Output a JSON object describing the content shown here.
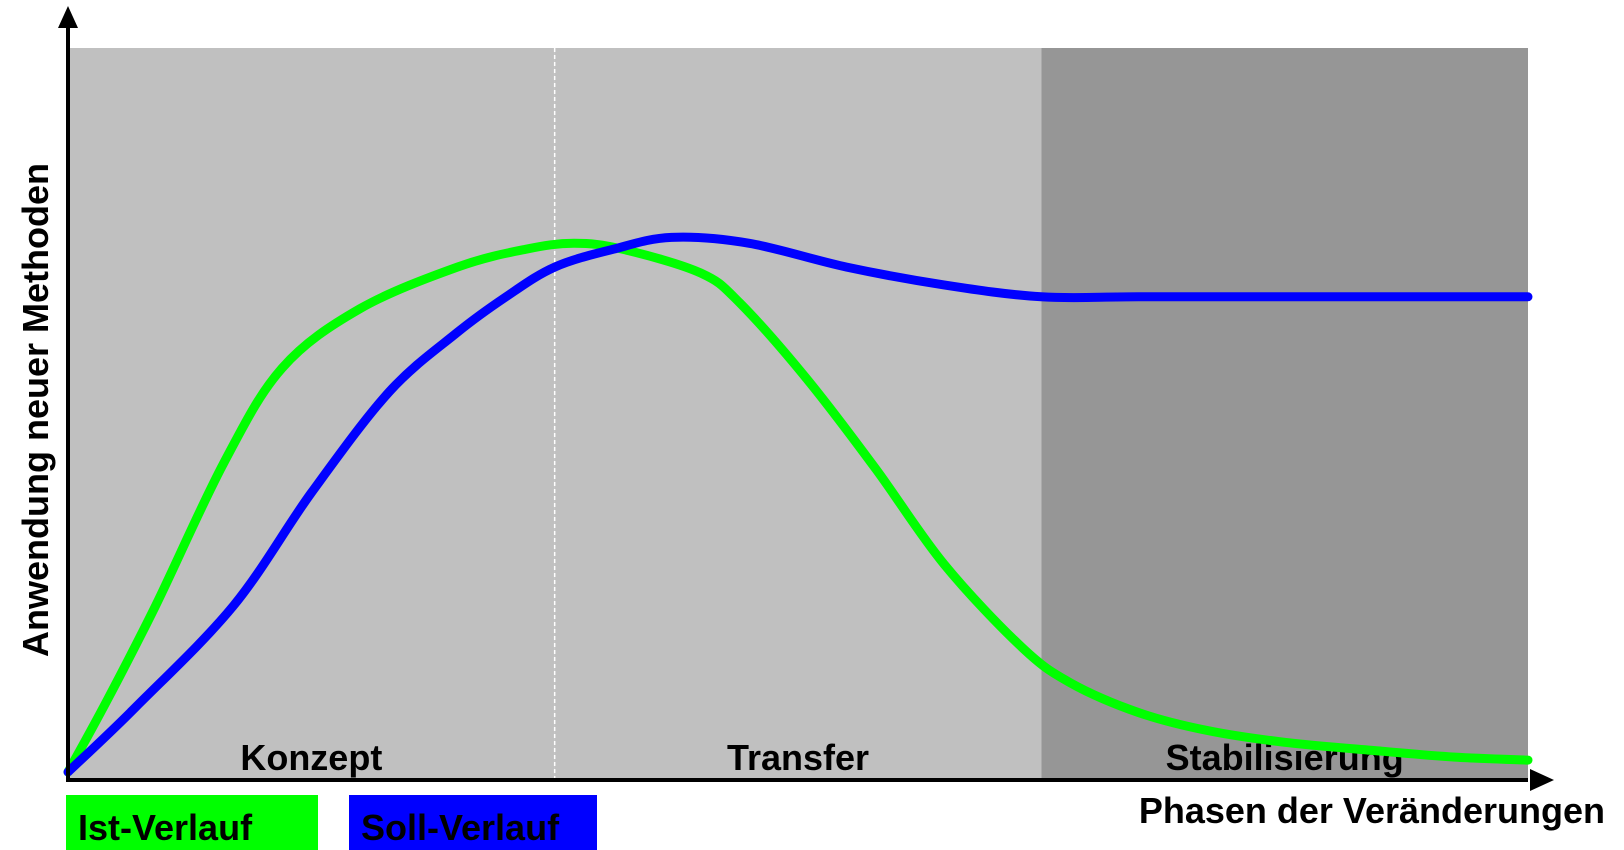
{
  "chart_data": {
    "type": "line",
    "xlabel": "Phasen der Veränderungen",
    "ylabel": "Anwendung neuer Methoden",
    "phases": [
      {
        "label": "Konzept",
        "color": "#c0c0c0"
      },
      {
        "label": "Transfer",
        "color": "#c0c0c0"
      },
      {
        "label": "Stabilisierung",
        "color": "#969696"
      }
    ],
    "xlim": [
      0,
      3
    ],
    "ylim": [
      0,
      1
    ],
    "grid": false,
    "legend_position": "bottom-left",
    "series": [
      {
        "name": "Ist-Verlauf",
        "color": "#00ff00",
        "x": [
          0,
          0.08,
          0.18,
          0.32,
          0.44,
          0.6,
          0.8,
          0.94,
          1.04,
          1.14,
          1.3,
          1.38,
          1.52,
          1.66,
          1.8,
          1.96,
          2.06,
          2.2,
          2.34,
          2.5,
          2.7,
          2.85,
          3.0
        ],
        "y": [
          0.0,
          0.12,
          0.28,
          0.52,
          0.68,
          0.78,
          0.85,
          0.88,
          0.89,
          0.88,
          0.84,
          0.79,
          0.66,
          0.51,
          0.35,
          0.21,
          0.15,
          0.1,
          0.07,
          0.05,
          0.035,
          0.025,
          0.02
        ]
      },
      {
        "name": "Soll-Verlauf",
        "color": "#0000ff",
        "x": [
          0,
          0.14,
          0.34,
          0.5,
          0.66,
          0.8,
          0.9,
          1.0,
          1.12,
          1.24,
          1.4,
          1.6,
          1.8,
          2.0,
          2.2,
          2.5,
          2.8,
          3.0
        ],
        "y": [
          0.0,
          0.11,
          0.28,
          0.47,
          0.64,
          0.74,
          0.8,
          0.85,
          0.88,
          0.9,
          0.89,
          0.85,
          0.82,
          0.8,
          0.8,
          0.8,
          0.8,
          0.8
        ]
      }
    ]
  }
}
